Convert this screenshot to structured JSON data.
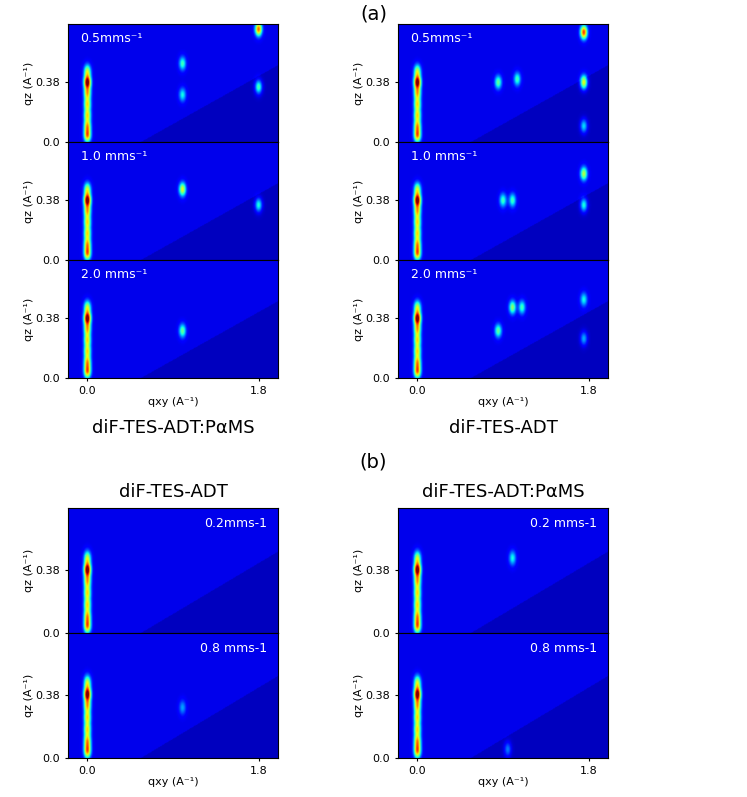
{
  "chart_data": [
    {
      "type": "heatmap",
      "group": "(a)",
      "sample": "diF-TES-ADT:PαMS",
      "title": "0.5mms⁻¹",
      "ylabel": "qz (A⁻¹)",
      "tick_labels": "y",
      "xlim": [
        -0.2,
        2.0
      ],
      "ylim": [
        0.0,
        0.75
      ],
      "yticks": [
        {
          "value": 0.0,
          "label": "0.0"
        },
        0.38
      ],
      "peaks": {
        "qxy": [
          0,
          0,
          0,
          0,
          0,
          0,
          0,
          1.0,
          1.0,
          1.8,
          1.8
        ],
        "qz": [
          0.04,
          0.1,
          0.17,
          0.24,
          0.31,
          0.38,
          0.45,
          0.5,
          0.3,
          0.72,
          0.35
        ],
        "intensity": [
          0.7,
          0.6,
          0.55,
          0.55,
          0.6,
          1.0,
          0.5,
          0.35,
          0.3,
          0.75,
          0.4
        ]
      }
    },
    {
      "type": "heatmap",
      "group": "(a)",
      "sample": "diF-TES-ADT:PαMS",
      "title": "1.0 mms⁻¹",
      "ylabel": "qz (A⁻¹)",
      "tick_labels": "y",
      "xlim": [
        -0.2,
        2.0
      ],
      "ylim": [
        0.0,
        0.75
      ],
      "yticks": [
        {
          "value": 0.0,
          "label": "0.0"
        },
        0.38
      ],
      "peaks": {
        "qxy": [
          0,
          0,
          0,
          0,
          0,
          0,
          0,
          1.0,
          1.8
        ],
        "qz": [
          0.04,
          0.1,
          0.17,
          0.24,
          0.31,
          0.38,
          0.45,
          0.45,
          0.35
        ],
        "intensity": [
          0.7,
          0.6,
          0.55,
          0.55,
          0.6,
          1.0,
          0.5,
          0.55,
          0.35
        ]
      }
    },
    {
      "type": "heatmap",
      "group": "(a)",
      "sample": "diF-TES-ADT:PαMS",
      "title": "2.0 mms⁻¹",
      "ylabel": "qz (A⁻¹)",
      "xlabel": "qxy (A⁻¹)",
      "xlim": [
        -0.2,
        2.0
      ],
      "ylim": [
        0.0,
        0.75
      ],
      "xticks": [
        {
          "value": 0.0,
          "label": "0.0"
        },
        1.8
      ],
      "yticks": [
        {
          "value": 0.0,
          "label": "0.0"
        },
        0.38
      ],
      "peaks": {
        "qxy": [
          0,
          0,
          0,
          0,
          0,
          0,
          0,
          1.0
        ],
        "qz": [
          0.04,
          0.1,
          0.17,
          0.24,
          0.31,
          0.38,
          0.45,
          0.3
        ],
        "intensity": [
          0.7,
          0.6,
          0.55,
          0.55,
          0.6,
          1.0,
          0.5,
          0.4
        ]
      }
    },
    {
      "type": "heatmap",
      "group": "(a)",
      "sample": "diF-TES-ADT",
      "title": "0.5mms⁻¹",
      "ylabel": "qz (A⁻¹)",
      "tick_labels": "y",
      "xlim": [
        -0.2,
        2.0
      ],
      "ylim": [
        0.0,
        0.75
      ],
      "yticks": [
        {
          "value": 0.0,
          "label": "0.0"
        },
        0.38
      ],
      "peaks": {
        "qxy": [
          0,
          0,
          0,
          0,
          0,
          0,
          0,
          0.85,
          1.05,
          1.75,
          1.75,
          1.75
        ],
        "qz": [
          0.04,
          0.1,
          0.17,
          0.24,
          0.31,
          0.38,
          0.45,
          0.38,
          0.4,
          0.7,
          0.38,
          0.1
        ],
        "intensity": [
          0.7,
          0.6,
          0.55,
          0.55,
          0.6,
          1.0,
          0.5,
          0.4,
          0.35,
          0.8,
          0.6,
          0.3
        ]
      }
    },
    {
      "type": "heatmap",
      "group": "(a)",
      "sample": "diF-TES-ADT",
      "title": "1.0 mms⁻¹",
      "ylabel": "qz (A⁻¹)",
      "tick_labels": "y",
      "xlim": [
        -0.2,
        2.0
      ],
      "ylim": [
        0.0,
        0.75
      ],
      "yticks": [
        {
          "value": 0.0,
          "label": "0.0"
        },
        0.38
      ],
      "peaks": {
        "qxy": [
          0,
          0,
          0,
          0,
          0,
          0,
          0,
          0.9,
          1.0,
          1.75,
          1.75
        ],
        "qz": [
          0.04,
          0.1,
          0.17,
          0.24,
          0.31,
          0.38,
          0.45,
          0.38,
          0.38,
          0.55,
          0.35
        ],
        "intensity": [
          0.7,
          0.6,
          0.55,
          0.55,
          0.6,
          1.0,
          0.5,
          0.35,
          0.35,
          0.5,
          0.35
        ]
      }
    },
    {
      "type": "heatmap",
      "group": "(a)",
      "sample": "diF-TES-ADT",
      "title": "2.0 mms⁻¹",
      "ylabel": "qz (A⁻¹)",
      "xlabel": "qxy (A⁻¹)",
      "xlim": [
        -0.2,
        2.0
      ],
      "ylim": [
        0.0,
        0.75
      ],
      "xticks": [
        {
          "value": 0.0,
          "label": "0.0"
        },
        1.8
      ],
      "yticks": [
        {
          "value": 0.0,
          "label": "0.0"
        },
        0.38
      ],
      "peaks": {
        "qxy": [
          0,
          0,
          0,
          0,
          0,
          0,
          0,
          0.85,
          1.0,
          1.1,
          1.75,
          1.75
        ],
        "qz": [
          0.04,
          0.1,
          0.17,
          0.24,
          0.31,
          0.38,
          0.45,
          0.3,
          0.45,
          0.45,
          0.5,
          0.25
        ],
        "intensity": [
          0.7,
          0.6,
          0.55,
          0.55,
          0.6,
          1.0,
          0.5,
          0.4,
          0.45,
          0.35,
          0.3,
          0.25
        ]
      }
    },
    {
      "type": "heatmap",
      "group": "(b)",
      "sample": "diF-TES-ADT",
      "title": "0.2mms-1",
      "ylabel": "qz (A⁻¹)",
      "tick_labels": "y",
      "xlim": [
        -0.2,
        2.0
      ],
      "ylim": [
        0.0,
        0.75
      ],
      "yticks": [
        {
          "value": 0.0,
          "label": "0.0"
        },
        0.38
      ],
      "peaks": {
        "qxy": [
          0,
          0,
          0,
          0,
          0,
          0,
          0
        ],
        "qz": [
          0.04,
          0.1,
          0.17,
          0.24,
          0.31,
          0.38,
          0.45
        ],
        "intensity": [
          0.7,
          0.6,
          0.55,
          0.55,
          0.6,
          1.0,
          0.5
        ]
      }
    },
    {
      "type": "heatmap",
      "group": "(b)",
      "sample": "diF-TES-ADT",
      "title": "0.8 mms-1",
      "ylabel": "qz (A⁻¹)",
      "xlabel": "qxy (A⁻¹)",
      "xlim": [
        -0.2,
        2.0
      ],
      "ylim": [
        0.0,
        0.75
      ],
      "xticks": [
        {
          "value": 0.0,
          "label": "0.0"
        },
        1.8
      ],
      "yticks": [
        {
          "value": 0.0,
          "label": "0.0"
        },
        0.38
      ],
      "peaks": {
        "qxy": [
          0,
          0,
          0,
          0,
          0,
          0,
          0,
          1.0
        ],
        "qz": [
          0.04,
          0.1,
          0.17,
          0.24,
          0.31,
          0.38,
          0.45,
          0.3
        ],
        "intensity": [
          0.7,
          0.6,
          0.55,
          0.55,
          0.6,
          1.0,
          0.5,
          0.2
        ]
      }
    },
    {
      "type": "heatmap",
      "group": "(b)",
      "sample": "diF-TES-ADT:PαMS",
      "title": "0.2 mms-1",
      "ylabel": "qz (A⁻¹)",
      "tick_labels": "y",
      "xlim": [
        -0.2,
        2.0
      ],
      "ylim": [
        0.0,
        0.75
      ],
      "yticks": [
        {
          "value": 0.0,
          "label": "0.0"
        },
        0.38
      ],
      "peaks": {
        "qxy": [
          0,
          0,
          0,
          0,
          0,
          0,
          0,
          1.0
        ],
        "qz": [
          0.04,
          0.1,
          0.17,
          0.24,
          0.31,
          0.38,
          0.45,
          0.45
        ],
        "intensity": [
          0.7,
          0.6,
          0.55,
          0.55,
          0.6,
          1.0,
          0.5,
          0.3
        ]
      }
    },
    {
      "type": "heatmap",
      "group": "(b)",
      "sample": "diF-TES-ADT:PαMS",
      "title": "0.8 mms-1",
      "ylabel": "qz (A⁻¹)",
      "xlabel": "qxy (A⁻¹)",
      "xlim": [
        -0.2,
        2.0
      ],
      "ylim": [
        0.0,
        0.75
      ],
      "xticks": [
        {
          "value": 0.0,
          "label": "0.0"
        },
        1.8
      ],
      "yticks": [
        {
          "value": 0.0,
          "label": "0.0"
        },
        0.38
      ],
      "peaks": {
        "qxy": [
          0,
          0,
          0,
          0,
          0,
          0,
          0,
          0.95
        ],
        "qz": [
          0.04,
          0.1,
          0.17,
          0.24,
          0.31,
          0.38,
          0.45,
          0.05
        ],
        "intensity": [
          0.7,
          0.6,
          0.55,
          0.55,
          0.6,
          1.0,
          0.5,
          0.2
        ]
      }
    }
  ]
}
